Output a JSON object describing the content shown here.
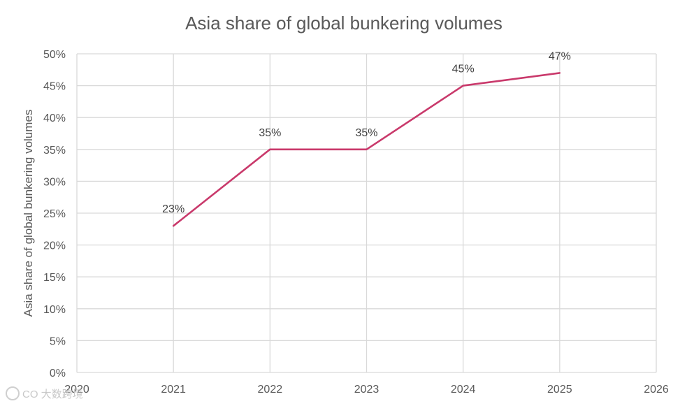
{
  "chart_data": {
    "type": "line",
    "title": "Asia share of global bunkering volumes",
    "ylabel": "Asia share of global bunkering volumes",
    "xlabel": "",
    "x_ticks": [
      2020,
      2021,
      2022,
      2023,
      2024,
      2025,
      2026
    ],
    "xlim": [
      2020,
      2026
    ],
    "ylim": [
      0,
      50
    ],
    "y_ticks": [
      "0%",
      "5%",
      "10%",
      "15%",
      "20%",
      "25%",
      "30%",
      "35%",
      "40%",
      "45%",
      "50%"
    ],
    "grid": true,
    "legend": "none",
    "series": [
      {
        "x": [
          2021,
          2022,
          2023,
          2024,
          2025
        ],
        "values": [
          23,
          35,
          35,
          45,
          47
        ],
        "labels": [
          "23%",
          "35%",
          "35%",
          "45%",
          "47%"
        ],
        "color": "#c9396b"
      }
    ]
  },
  "watermark": {
    "text": "CO 大数跨境"
  }
}
